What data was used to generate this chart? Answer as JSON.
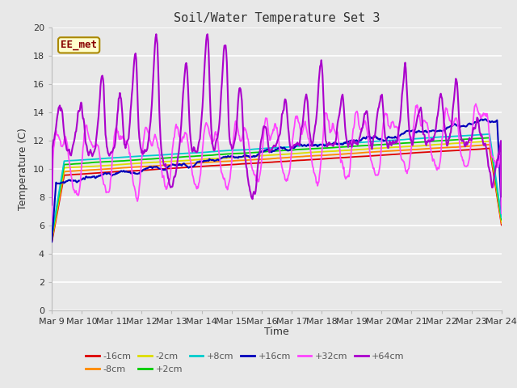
{
  "title": "Soil/Water Temperature Set 3",
  "xlabel": "Time",
  "ylabel": "Temperature (C)",
  "ylim": [
    0,
    20
  ],
  "xlim": [
    0,
    15
  ],
  "yticks": [
    0,
    2,
    4,
    6,
    8,
    10,
    12,
    14,
    16,
    18,
    20
  ],
  "xtick_labels": [
    "Mar 9",
    "Mar 10",
    "Mar 11",
    "Mar 12",
    "Mar 13",
    "Mar 14",
    "Mar 15",
    "Mar 16",
    "Mar 17",
    "Mar 18",
    "Mar 19",
    "Mar 20",
    "Mar 21",
    "Mar 22",
    "Mar 23",
    "Mar 24"
  ],
  "fig_bg": "#e8e8e8",
  "plot_bg": "#e8e8e8",
  "grid_color": "#ffffff",
  "series": [
    {
      "label": "-16cm",
      "color": "#dd0000"
    },
    {
      "label": "-8cm",
      "color": "#ff8800"
    },
    {
      "label": "-2cm",
      "color": "#dddd00"
    },
    {
      "label": "+2cm",
      "color": "#00cc00"
    },
    {
      "label": "+8cm",
      "color": "#00cccc"
    },
    {
      "label": "+16cm",
      "color": "#0000bb"
    },
    {
      "label": "+32cm",
      "color": "#ff44ff"
    },
    {
      "label": "+64cm",
      "color": "#aa00cc"
    }
  ],
  "annotation_text": "EE_met",
  "annotation_color": "#880000",
  "annotation_bg": "#ffffcc",
  "annotation_border": "#aa8800",
  "title_fontsize": 11,
  "axis_label_fontsize": 9,
  "tick_fontsize": 8,
  "legend_fontsize": 8
}
